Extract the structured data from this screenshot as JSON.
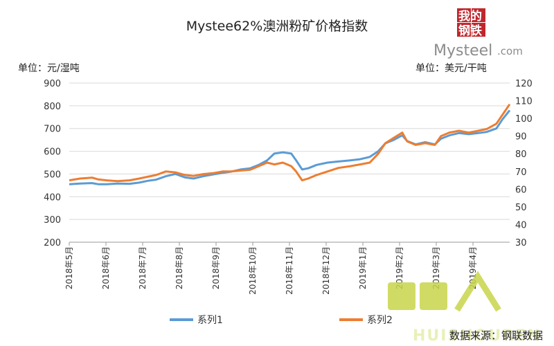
{
  "chart_data": {
    "type": "line",
    "title": "Mystee62%澳洲粉矿价格指数",
    "left_unit": "单位：元/湿吨",
    "right_unit": "单位：美元/干吨",
    "left_axis": {
      "min": 200,
      "max": 900,
      "step": 100
    },
    "right_axis": {
      "min": 30,
      "max": 120,
      "step": 10
    },
    "x_axis": {
      "start": "2018-05-01",
      "end": "2019-05-01"
    },
    "x_ticks": [
      "2018年5月",
      "2018年6月",
      "2018年7月",
      "2018年8月",
      "2018年9月",
      "2018年10月",
      "2018年11月",
      "2018年12月",
      "2019年1月",
      "2019年2月",
      "2019年3月",
      "2019年4月"
    ],
    "grid": true,
    "legend_position": "bottom",
    "series": [
      {
        "name": "系列1",
        "axis": "left",
        "color": "#5b9bd5",
        "points": [
          [
            "2018-05-01",
            455
          ],
          [
            "2018-05-10",
            458
          ],
          [
            "2018-05-20",
            460
          ],
          [
            "2018-05-25",
            455
          ],
          [
            "2018-06-01",
            455
          ],
          [
            "2018-06-10",
            458
          ],
          [
            "2018-06-20",
            457
          ],
          [
            "2018-06-28",
            462
          ],
          [
            "2018-07-05",
            470
          ],
          [
            "2018-07-12",
            475
          ],
          [
            "2018-07-20",
            490
          ],
          [
            "2018-07-28",
            500
          ],
          [
            "2018-08-05",
            485
          ],
          [
            "2018-08-12",
            480
          ],
          [
            "2018-08-20",
            490
          ],
          [
            "2018-08-28",
            498
          ],
          [
            "2018-09-05",
            505
          ],
          [
            "2018-09-12",
            510
          ],
          [
            "2018-09-20",
            520
          ],
          [
            "2018-09-28",
            525
          ],
          [
            "2018-10-05",
            540
          ],
          [
            "2018-10-12",
            560
          ],
          [
            "2018-10-18",
            590
          ],
          [
            "2018-10-25",
            595
          ],
          [
            "2018-11-01",
            590
          ],
          [
            "2018-11-05",
            560
          ],
          [
            "2018-11-10",
            520
          ],
          [
            "2018-11-15",
            525
          ],
          [
            "2018-11-22",
            540
          ],
          [
            "2018-12-01",
            550
          ],
          [
            "2018-12-10",
            555
          ],
          [
            "2018-12-20",
            560
          ],
          [
            "2018-12-28",
            565
          ],
          [
            "2019-01-05",
            575
          ],
          [
            "2019-01-12",
            600
          ],
          [
            "2019-01-18",
            635
          ],
          [
            "2019-01-25",
            650
          ],
          [
            "2019-02-01",
            670
          ],
          [
            "2019-02-05",
            645
          ],
          [
            "2019-02-12",
            630
          ],
          [
            "2019-02-20",
            640
          ],
          [
            "2019-02-28",
            630
          ],
          [
            "2019-03-05",
            655
          ],
          [
            "2019-03-12",
            670
          ],
          [
            "2019-03-20",
            680
          ],
          [
            "2019-03-28",
            675
          ],
          [
            "2019-04-05",
            680
          ],
          [
            "2019-04-12",
            685
          ],
          [
            "2019-04-20",
            700
          ],
          [
            "2019-04-25",
            740
          ],
          [
            "2019-05-01",
            780
          ]
        ]
      },
      {
        "name": "系列2",
        "axis": "right",
        "color": "#ed7d31",
        "points": [
          [
            "2018-05-01",
            65
          ],
          [
            "2018-05-10",
            66
          ],
          [
            "2018-05-20",
            66.5
          ],
          [
            "2018-05-25",
            65.5
          ],
          [
            "2018-06-01",
            65
          ],
          [
            "2018-06-10",
            64.5
          ],
          [
            "2018-06-20",
            65
          ],
          [
            "2018-06-28",
            66
          ],
          [
            "2018-07-05",
            67
          ],
          [
            "2018-07-12",
            68
          ],
          [
            "2018-07-20",
            70
          ],
          [
            "2018-07-28",
            69.5
          ],
          [
            "2018-08-05",
            68
          ],
          [
            "2018-08-12",
            67.5
          ],
          [
            "2018-08-20",
            68.5
          ],
          [
            "2018-08-28",
            69
          ],
          [
            "2018-09-05",
            70
          ],
          [
            "2018-09-12",
            70
          ],
          [
            "2018-09-20",
            70.5
          ],
          [
            "2018-09-28",
            71
          ],
          [
            "2018-10-05",
            73
          ],
          [
            "2018-10-12",
            75
          ],
          [
            "2018-10-18",
            74
          ],
          [
            "2018-10-25",
            75
          ],
          [
            "2018-11-01",
            73
          ],
          [
            "2018-11-05",
            70
          ],
          [
            "2018-11-10",
            65
          ],
          [
            "2018-11-15",
            66
          ],
          [
            "2018-11-22",
            68
          ],
          [
            "2018-12-01",
            70
          ],
          [
            "2018-12-10",
            72
          ],
          [
            "2018-12-20",
            73
          ],
          [
            "2018-12-28",
            74
          ],
          [
            "2019-01-05",
            75
          ],
          [
            "2019-01-12",
            80
          ],
          [
            "2019-01-18",
            86
          ],
          [
            "2019-01-25",
            89
          ],
          [
            "2019-02-01",
            92
          ],
          [
            "2019-02-05",
            87
          ],
          [
            "2019-02-12",
            85
          ],
          [
            "2019-02-20",
            86
          ],
          [
            "2019-02-28",
            85
          ],
          [
            "2019-03-05",
            90
          ],
          [
            "2019-03-12",
            92
          ],
          [
            "2019-03-20",
            93
          ],
          [
            "2019-03-28",
            92
          ],
          [
            "2019-04-05",
            93
          ],
          [
            "2019-04-12",
            94
          ],
          [
            "2019-04-20",
            97
          ],
          [
            "2019-04-25",
            102
          ],
          [
            "2019-05-01",
            108
          ]
        ]
      }
    ]
  },
  "watermark": {
    "logo_cn_1": "我的",
    "logo_cn_2": "钢铁",
    "logo_en": "Mysteel",
    "logo_com": ".com",
    "overlay_text": "HUISHOUREN"
  },
  "source": "数据来源：钢联数据",
  "colors": {
    "logo_red": "#c0272d",
    "overlay_green": "#c8d54a"
  }
}
